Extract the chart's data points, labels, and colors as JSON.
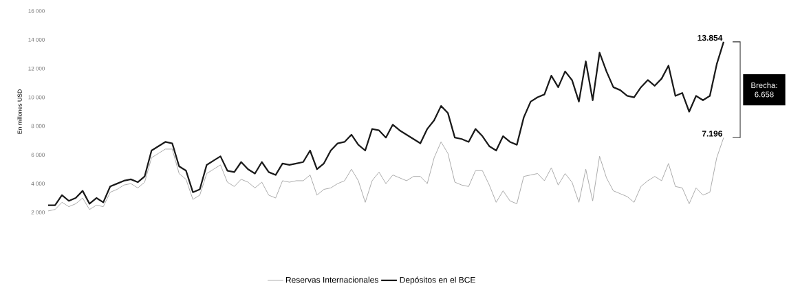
{
  "chart_data": {
    "type": "line",
    "ylabel": "En millones USD",
    "ylim": [
      2000,
      16000
    ],
    "yticks": [
      {
        "value": 2000,
        "label": "2 000"
      },
      {
        "value": 4000,
        "label": "4 000"
      },
      {
        "value": 6000,
        "label": "6 000"
      },
      {
        "value": 8000,
        "label": "8 000"
      },
      {
        "value": 10000,
        "label": "10 000"
      },
      {
        "value": 12000,
        "label": "12 000"
      },
      {
        "value": 14000,
        "label": "14 000"
      },
      {
        "value": 16000,
        "label": "16 000"
      }
    ],
    "tick_labels": "y",
    "legend": "bottom",
    "line_style": "solid",
    "categories": [
      null,
      null,
      null,
      null,
      null,
      null,
      null,
      null,
      null,
      null,
      null,
      null,
      null,
      null,
      null,
      null,
      null,
      null,
      null,
      null,
      null,
      null,
      null,
      null,
      null,
      null,
      null,
      null,
      null,
      null,
      null,
      null,
      null,
      null,
      null,
      null,
      null,
      null,
      null,
      null,
      null,
      null,
      null,
      null,
      null,
      null,
      null,
      null,
      null,
      null,
      null,
      null,
      null,
      null,
      null,
      null,
      null,
      null,
      null,
      null,
      null,
      null,
      null,
      null,
      null,
      null,
      null,
      null,
      null,
      null,
      null,
      null,
      null,
      null,
      null,
      null,
      null,
      null,
      null,
      null,
      null,
      null,
      null,
      null,
      null,
      null,
      null,
      null,
      null,
      null,
      null,
      null,
      null,
      null,
      null,
      null,
      null,
      null,
      null
    ],
    "annotations": [
      "Brecha: 6.658"
    ],
    "series": [
      {
        "name": "Reservas Internacionales",
        "color": "#a6a6a6",
        "values": [
          2100,
          2200,
          2700,
          2400,
          2600,
          3000,
          2200,
          2500,
          2400,
          3400,
          3600,
          3900,
          4000,
          3700,
          4100,
          5800,
          6100,
          6400,
          6400,
          4700,
          4300,
          2900,
          3200,
          4700,
          5000,
          5300,
          4100,
          3800,
          4300,
          4100,
          3700,
          4100,
          3200,
          3000,
          4200,
          4100,
          4200,
          4200,
          4600,
          3200,
          3600,
          3700,
          4000,
          4200,
          5000,
          4200,
          2700,
          4200,
          4800,
          4000,
          4600,
          4400,
          4200,
          4500,
          4500,
          4000,
          5800,
          6900,
          6100,
          4100,
          3900,
          3800,
          4900,
          4900,
          3900,
          2700,
          3500,
          2800,
          2600,
          4500,
          4600,
          4700,
          4200,
          5100,
          3900,
          4700,
          4100,
          2700,
          5000,
          2800,
          5900,
          4400,
          3500,
          3300,
          3100,
          2700,
          3800,
          4200,
          4500,
          4200,
          5400,
          3800,
          3700,
          2600,
          3700,
          3200,
          3400,
          5800,
          7196
        ],
        "value_labels": [
          null,
          null,
          null,
          null,
          null,
          null,
          null,
          null,
          null,
          null,
          null,
          null,
          null,
          null,
          null,
          null,
          null,
          null,
          null,
          null,
          null,
          null,
          null,
          null,
          null,
          null,
          null,
          null,
          null,
          null,
          null,
          null,
          null,
          null,
          null,
          null,
          null,
          null,
          null,
          null,
          null,
          null,
          null,
          null,
          null,
          null,
          null,
          null,
          null,
          null,
          null,
          null,
          null,
          null,
          null,
          null,
          null,
          null,
          null,
          null,
          null,
          null,
          null,
          null,
          null,
          null,
          null,
          null,
          null,
          null,
          null,
          null,
          null,
          null,
          null,
          null,
          null,
          null,
          null,
          null,
          null,
          null,
          null,
          null,
          null,
          null,
          null,
          null,
          null,
          null,
          null,
          null,
          null,
          null,
          null,
          null,
          null,
          null,
          "7.196"
        ]
      },
      {
        "name": "Depósitos en el BCE",
        "color": "#1a1a1a",
        "values": [
          2500,
          2500,
          3200,
          2800,
          3000,
          3500,
          2600,
          3000,
          2700,
          3800,
          4000,
          4200,
          4300,
          4100,
          4500,
          6300,
          6600,
          6900,
          6800,
          5200,
          4900,
          3400,
          3600,
          5300,
          5600,
          5900,
          4900,
          4800,
          5500,
          5000,
          4700,
          5500,
          4800,
          4600,
          5400,
          5300,
          5400,
          5500,
          6300,
          5000,
          5400,
          6300,
          6800,
          6900,
          7400,
          6700,
          6300,
          7800,
          7700,
          7200,
          8100,
          7700,
          7400,
          7100,
          6800,
          7800,
          8400,
          9400,
          8900,
          7200,
          7100,
          6900,
          7800,
          7300,
          6600,
          6300,
          7300,
          6900,
          6700,
          8600,
          9700,
          10000,
          10200,
          11500,
          10700,
          11800,
          11200,
          9700,
          12500,
          9800,
          13100,
          11800,
          10700,
          10500,
          10100,
          10000,
          10700,
          11200,
          10800,
          11300,
          12200,
          10100,
          10300,
          9000,
          10100,
          9800,
          10100,
          12300,
          13854
        ],
        "value_labels": [
          null,
          null,
          null,
          null,
          null,
          null,
          null,
          null,
          null,
          null,
          null,
          null,
          null,
          null,
          null,
          null,
          null,
          null,
          null,
          null,
          null,
          null,
          null,
          null,
          null,
          null,
          null,
          null,
          null,
          null,
          null,
          null,
          null,
          null,
          null,
          null,
          null,
          null,
          null,
          null,
          null,
          null,
          null,
          null,
          null,
          null,
          null,
          null,
          null,
          null,
          null,
          null,
          null,
          null,
          null,
          null,
          null,
          null,
          null,
          null,
          null,
          null,
          null,
          null,
          null,
          null,
          null,
          null,
          null,
          null,
          null,
          null,
          null,
          null,
          null,
          null,
          null,
          null,
          null,
          null,
          null,
          null,
          null,
          null,
          null,
          null,
          null,
          null,
          null,
          null,
          null,
          null,
          null,
          null,
          null,
          null,
          null,
          null,
          "13.854"
        ]
      }
    ]
  }
}
